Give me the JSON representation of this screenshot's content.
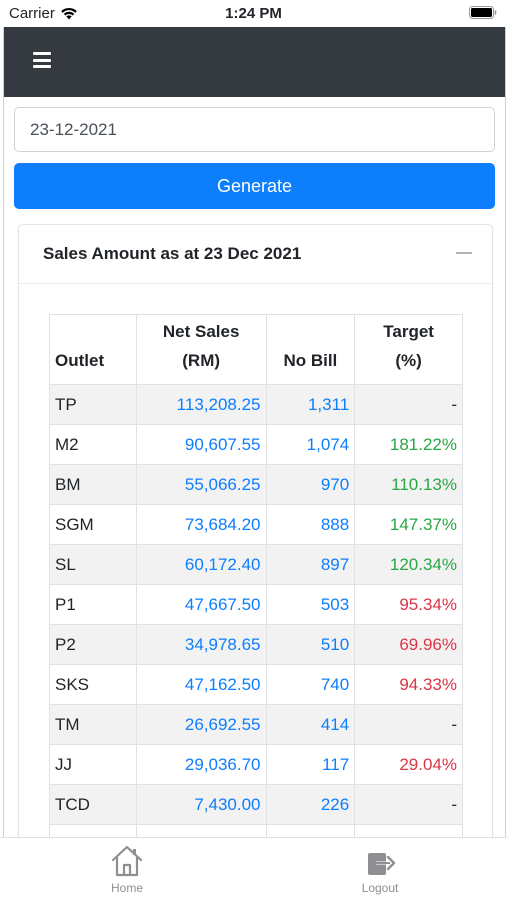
{
  "status_bar": {
    "carrier": "Carrier",
    "time": "1:24 PM"
  },
  "navbar": {
    "menu_icon": "hamburger-menu-icon"
  },
  "form": {
    "date_value": "23-12-2021",
    "generate_label": "Generate"
  },
  "card": {
    "title": "Sales Amount as at 23 Dec 2021",
    "collapse_icon": "minus-icon",
    "table": {
      "headers": {
        "outlet": "Outlet",
        "net_sales_line1": "Net Sales",
        "net_sales_line2": "(RM)",
        "no_bill": "No Bill",
        "target_line1": "Target",
        "target_line2": "(%)"
      },
      "rows": [
        {
          "outlet": "TP",
          "net_sales": "113,208.25",
          "no_bill": "1,311",
          "target": "-"
        },
        {
          "outlet": "M2",
          "net_sales": "90,607.55",
          "no_bill": "1,074",
          "target": "181.22%"
        },
        {
          "outlet": "BM",
          "net_sales": "55,066.25",
          "no_bill": "970",
          "target": "110.13%"
        },
        {
          "outlet": "SGM",
          "net_sales": "73,684.20",
          "no_bill": "888",
          "target": "147.37%"
        },
        {
          "outlet": "SL",
          "net_sales": "60,172.40",
          "no_bill": "897",
          "target": "120.34%"
        },
        {
          "outlet": "P1",
          "net_sales": "47,667.50",
          "no_bill": "503",
          "target": "95.34%"
        },
        {
          "outlet": "P2",
          "net_sales": "34,978.65",
          "no_bill": "510",
          "target": "69.96%"
        },
        {
          "outlet": "SKS",
          "net_sales": "47,162.50",
          "no_bill": "740",
          "target": "94.33%"
        },
        {
          "outlet": "TM",
          "net_sales": "26,692.55",
          "no_bill": "414",
          "target": "-"
        },
        {
          "outlet": "JJ",
          "net_sales": "29,036.70",
          "no_bill": "117",
          "target": "29.04%"
        },
        {
          "outlet": "TCD",
          "net_sales": "7,430.00",
          "no_bill": "226",
          "target": "-"
        },
        {
          "outlet": "",
          "net_sales": "",
          "no_bill": "",
          "target": ""
        }
      ]
    }
  },
  "tabbar": {
    "home": {
      "label": "Home",
      "icon": "home-icon"
    },
    "logout": {
      "label": "Logout",
      "icon": "logout-icon"
    }
  },
  "colors": {
    "navbar": "#343a40",
    "primary": "#0d7efc",
    "above_target": "#28a745",
    "below_target": "#dc3545"
  }
}
